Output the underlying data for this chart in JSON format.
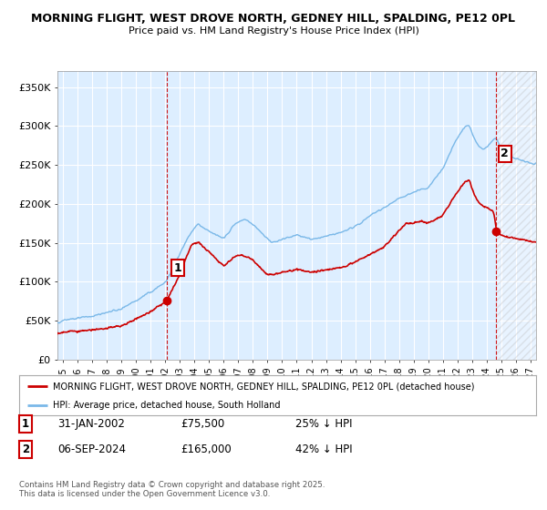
{
  "title": "MORNING FLIGHT, WEST DROVE NORTH, GEDNEY HILL, SPALDING, PE12 0PL",
  "subtitle": "Price paid vs. HM Land Registry's House Price Index (HPI)",
  "ylabel_ticks": [
    "£0",
    "£50K",
    "£100K",
    "£150K",
    "£200K",
    "£250K",
    "£300K",
    "£350K"
  ],
  "ytick_values": [
    0,
    50000,
    100000,
    150000,
    200000,
    250000,
    300000,
    350000
  ],
  "ylim": [
    0,
    370000
  ],
  "xlim_start": 1994.6,
  "xlim_end": 2027.4,
  "hpi_color": "#7ab8e8",
  "price_color": "#cc0000",
  "vline_color": "#cc0000",
  "grid_color": "#cccccc",
  "chart_bg_color": "#ddeeff",
  "background_color": "#ffffff",
  "point1_year": 2002.08,
  "point1_price": 75500,
  "point2_year": 2024.68,
  "point2_price": 165000,
  "legend_label1": "MORNING FLIGHT, WEST DROVE NORTH, GEDNEY HILL, SPALDING, PE12 0PL (detached house)",
  "legend_label2": "HPI: Average price, detached house, South Holland",
  "note1_date": "31-JAN-2002",
  "note1_price": "£75,500",
  "note1_hpi": "25% ↓ HPI",
  "note2_date": "06-SEP-2024",
  "note2_price": "£165,000",
  "note2_hpi": "42% ↓ HPI",
  "copyright_text": "Contains HM Land Registry data © Crown copyright and database right 2025.\nThis data is licensed under the Open Government Licence v3.0."
}
